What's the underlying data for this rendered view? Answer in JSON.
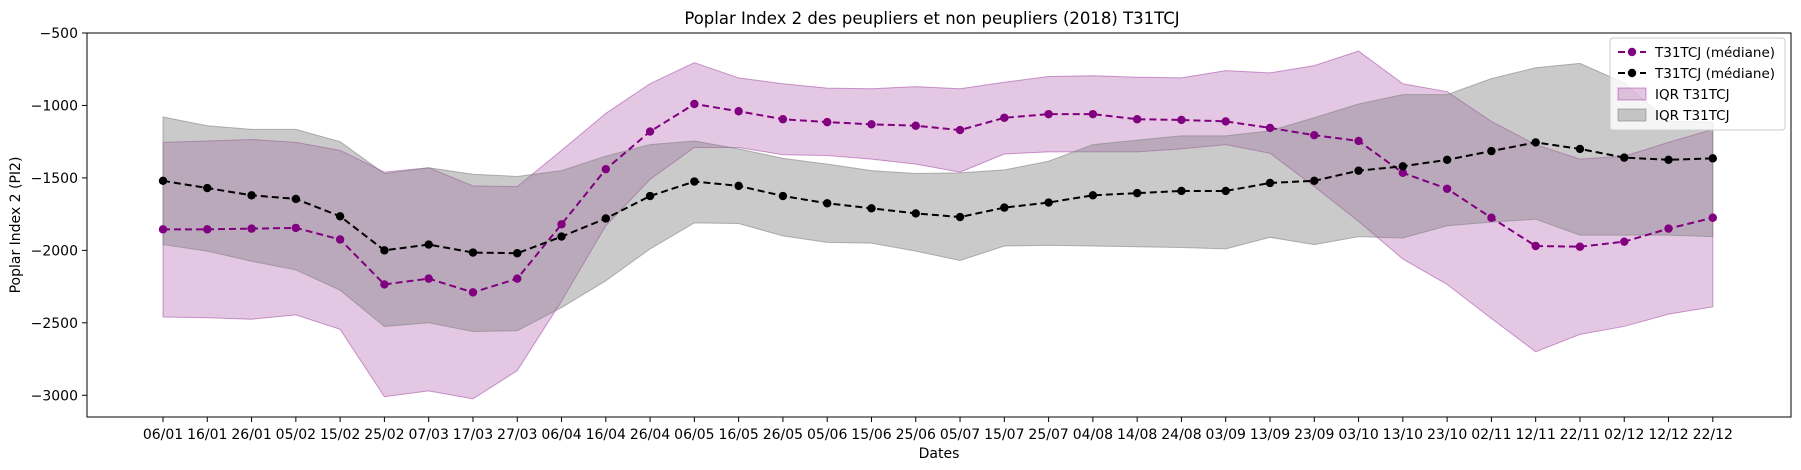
{
  "chart_data": {
    "type": "line",
    "title": "Poplar Index 2 des peupliers et non peupliers (2018) T31TCJ",
    "xlabel": "Dates",
    "ylabel": "Poplar Index 2 (PI2)",
    "ylim": [
      -3150,
      -500
    ],
    "yticks": [
      -3000,
      -2500,
      -2000,
      -1500,
      -1000,
      -500
    ],
    "ytick_labels": [
      "−3000",
      "−2500",
      "−2000",
      "−1500",
      "−1000",
      "−500"
    ],
    "grid": false,
    "legend_position": "top-right",
    "categories": [
      "06/01",
      "16/01",
      "26/01",
      "05/02",
      "15/02",
      "25/02",
      "07/03",
      "17/03",
      "27/03",
      "06/04",
      "16/04",
      "26/04",
      "06/05",
      "16/05",
      "26/05",
      "05/06",
      "15/06",
      "25/06",
      "05/07",
      "15/07",
      "25/07",
      "04/08",
      "14/08",
      "24/08",
      "03/09",
      "13/09",
      "23/09",
      "03/10",
      "13/10",
      "23/10",
      "02/11",
      "12/11",
      "22/11",
      "02/12",
      "12/12",
      "22/12"
    ],
    "series": [
      {
        "name": "T31TCJ (médiane)",
        "kind": "line",
        "color": "#800080",
        "values": [
          -1855,
          -1855,
          -1850,
          -1845,
          -1925,
          -2235,
          -2195,
          -2290,
          -2195,
          -1820,
          -1440,
          -1180,
          -990,
          -1040,
          -1095,
          -1115,
          -1130,
          -1140,
          -1170,
          -1085,
          -1060,
          -1060,
          -1095,
          -1100,
          -1110,
          -1155,
          -1205,
          -1245,
          -1465,
          -1575,
          -1775,
          -1970,
          -1975,
          -1940,
          -1850,
          -1775
        ]
      },
      {
        "name": "T31TCJ (médiane)",
        "kind": "line",
        "color": "#000000",
        "values": [
          -1520,
          -1570,
          -1620,
          -1645,
          -1765,
          -2000,
          -1960,
          -2015,
          -2020,
          -1905,
          -1780,
          -1625,
          -1525,
          -1555,
          -1625,
          -1675,
          -1710,
          -1745,
          -1770,
          -1705,
          -1670,
          -1620,
          -1605,
          -1590,
          -1590,
          -1535,
          -1520,
          -1450,
          -1420,
          -1375,
          -1315,
          -1255,
          -1300,
          -1360,
          -1375,
          -1365
        ]
      },
      {
        "name": "IQR T31TCJ",
        "kind": "band",
        "color": "#800080",
        "opacity": 0.22,
        "upper": [
          -1255,
          -1245,
          -1235,
          -1255,
          -1310,
          -1460,
          -1430,
          -1555,
          -1560,
          -1310,
          -1055,
          -850,
          -705,
          -810,
          -850,
          -880,
          -885,
          -870,
          -885,
          -840,
          -800,
          -795,
          -805,
          -810,
          -760,
          -775,
          -725,
          -625,
          -850,
          -905,
          -1110,
          -1270,
          -1370,
          -1350,
          -1255,
          -1165
        ],
        "lower": [
          -2460,
          -2465,
          -2475,
          -2445,
          -2545,
          -3010,
          -2970,
          -3025,
          -2830,
          -2350,
          -1830,
          -1510,
          -1290,
          -1290,
          -1340,
          -1345,
          -1370,
          -1405,
          -1460,
          -1335,
          -1320,
          -1320,
          -1320,
          -1300,
          -1270,
          -1330,
          -1560,
          -1800,
          -2060,
          -2235,
          -2470,
          -2700,
          -2580,
          -2525,
          -2440,
          -2390
        ]
      },
      {
        "name": "IQR T31TCJ",
        "kind": "band",
        "color": "#808080",
        "opacity": 0.42,
        "upper": [
          -1080,
          -1140,
          -1165,
          -1165,
          -1250,
          -1470,
          -1430,
          -1475,
          -1490,
          -1450,
          -1350,
          -1270,
          -1245,
          -1300,
          -1365,
          -1405,
          -1450,
          -1470,
          -1465,
          -1445,
          -1385,
          -1270,
          -1240,
          -1210,
          -1210,
          -1175,
          -1085,
          -990,
          -925,
          -925,
          -815,
          -740,
          -710,
          -845,
          -1110,
          -1115
        ],
        "lower": [
          -1960,
          -2005,
          -2075,
          -2135,
          -2275,
          -2525,
          -2500,
          -2560,
          -2555,
          -2395,
          -2210,
          -1990,
          -1810,
          -1815,
          -1900,
          -1945,
          -1950,
          -2005,
          -2070,
          -1970,
          -1965,
          -1970,
          -1975,
          -1980,
          -1990,
          -1910,
          -1960,
          -1905,
          -1915,
          -1830,
          -1805,
          -1785,
          -1895,
          -1895,
          -1895,
          -1905
        ]
      }
    ]
  }
}
